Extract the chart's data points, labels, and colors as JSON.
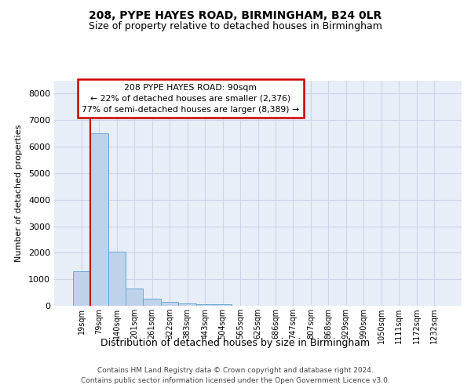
{
  "title_line1": "208, PYPE HAYES ROAD, BIRMINGHAM, B24 0LR",
  "title_line2": "Size of property relative to detached houses in Birmingham",
  "xlabel": "Distribution of detached houses by size in Birmingham",
  "ylabel": "Number of detached properties",
  "bar_labels": [
    "19sqm",
    "79sqm",
    "140sqm",
    "201sqm",
    "261sqm",
    "322sqm",
    "383sqm",
    "443sqm",
    "504sqm",
    "565sqm",
    "625sqm",
    "686sqm",
    "747sqm",
    "807sqm",
    "868sqm",
    "929sqm",
    "990sqm",
    "1050sqm",
    "1111sqm",
    "1172sqm",
    "1232sqm"
  ],
  "bar_values": [
    1300,
    6500,
    2050,
    650,
    270,
    140,
    90,
    55,
    70,
    0,
    0,
    0,
    0,
    0,
    0,
    0,
    0,
    0,
    0,
    0,
    0
  ],
  "bar_color": "#bed3ea",
  "bar_edge_color": "#6aaad4",
  "property_bin_index": 1,
  "vline_color": "#cc0000",
  "annotation_line1": "208 PYPE HAYES ROAD: 90sqm",
  "annotation_line2": "← 22% of detached houses are smaller (2,376)",
  "annotation_line3": "77% of semi-detached houses are larger (8,389) →",
  "annotation_box_facecolor": "#ffffff",
  "annotation_box_edgecolor": "#cc0000",
  "ylim": [
    0,
    8500
  ],
  "yticks": [
    0,
    1000,
    2000,
    3000,
    4000,
    5000,
    6000,
    7000,
    8000
  ],
  "grid_color": "#ccd6e8",
  "bg_color": "#e8eef8",
  "footer_line1": "Contains HM Land Registry data © Crown copyright and database right 2024.",
  "footer_line2": "Contains public sector information licensed under the Open Government Licence v3.0."
}
